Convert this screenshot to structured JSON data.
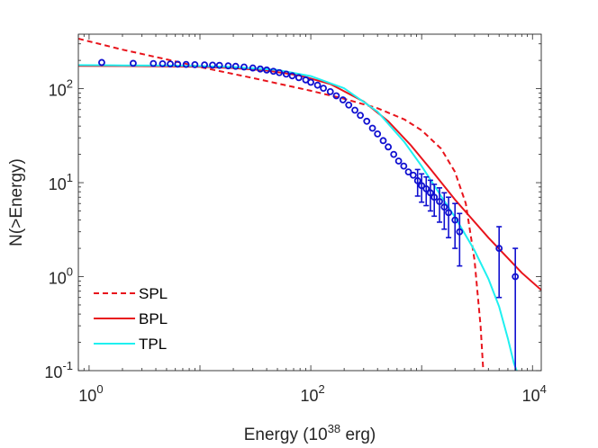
{
  "chart_data": {
    "type": "scatter",
    "xscale": "log",
    "yscale": "log",
    "xlim": [
      0.8,
      12000
    ],
    "ylim": [
      0.1,
      380
    ],
    "xticks": [
      {
        "base": "10",
        "exp": "0",
        "value": 1
      },
      {
        "base": "10",
        "exp": "2",
        "value": 100
      },
      {
        "base": "10",
        "exp": "4",
        "value": 10000
      }
    ],
    "yticks": [
      {
        "base": "10",
        "exp": "-1",
        "value": 0.1
      },
      {
        "base": "10",
        "exp": "0",
        "value": 1
      },
      {
        "base": "10",
        "exp": "1",
        "value": 10
      },
      {
        "base": "10",
        "exp": "2",
        "value": 100
      }
    ],
    "xlabel": {
      "pre": "Energy (10",
      "exp": "38",
      "post": " erg)"
    },
    "ylabel": "N(>Energy)",
    "legend_position": "bottom-left",
    "grid": false,
    "colors": {
      "data": "#1010d0",
      "SPL": "#e8141c",
      "BPL": "#e8141c",
      "TPL": "#1ff0f0",
      "axis": "#262626"
    },
    "series": [
      {
        "name": "SPL",
        "style": "dashed",
        "x": [
          0.8,
          2,
          5,
          10,
          30,
          100,
          200,
          400,
          700,
          1000,
          1500,
          2000,
          2500,
          3000,
          3400,
          3600
        ],
        "y": [
          340,
          260,
          205,
          170,
          130,
          95,
          78,
          62,
          47,
          36,
          23,
          13,
          6,
          1.5,
          0.3,
          0.1
        ]
      },
      {
        "name": "BPL",
        "style": "solid",
        "x": [
          0.8,
          2,
          5,
          10,
          20,
          40,
          80,
          150,
          300,
          500,
          800,
          1200,
          2000,
          4000,
          8000,
          12000
        ],
        "y": [
          175,
          174,
          173,
          171,
          166,
          156,
          138,
          112,
          73,
          45,
          25,
          14,
          6.6,
          2.6,
          1.1,
          0.72
        ]
      },
      {
        "name": "TPL",
        "style": "solid",
        "x": [
          0.8,
          2,
          5,
          10,
          20,
          50,
          100,
          200,
          400,
          700,
          1000,
          1500,
          2000,
          3000,
          4000,
          5000,
          6000,
          6800,
          7200
        ],
        "y": [
          178,
          177,
          176,
          174,
          170,
          158,
          136,
          101,
          57,
          27,
          15,
          7.2,
          4.3,
          1.9,
          0.95,
          0.48,
          0.22,
          0.12,
          0.1
        ]
      }
    ],
    "data_points": {
      "x": [
        1.3,
        2.5,
        3.8,
        4.6,
        5.4,
        6.3,
        7.5,
        9,
        11,
        13,
        15,
        18,
        21,
        25,
        30,
        35,
        40,
        46,
        52,
        60,
        68,
        78,
        90,
        100,
        115,
        130,
        150,
        170,
        195,
        220,
        250,
        280,
        320,
        360,
        400,
        450,
        500,
        560,
        620,
        690,
        760,
        840,
        920,
        1000,
        1100,
        1200,
        1300,
        1450,
        1600,
        1750,
        2000,
        2200,
        5000,
        7000
      ],
      "y": [
        190,
        186,
        185,
        184,
        183,
        182,
        181,
        180,
        179,
        178,
        177,
        175,
        173,
        170,
        166,
        162,
        158,
        153,
        148,
        143,
        137,
        131,
        124,
        117,
        109,
        101,
        93,
        84,
        76,
        67,
        59,
        52,
        45,
        38,
        33,
        28,
        24,
        20,
        17,
        15,
        13,
        12,
        10.5,
        9.3,
        8.6,
        7.8,
        7,
        6.3,
        5.5,
        4.8,
        4,
        3,
        2,
        1
      ],
      "err_low": [
        0,
        0,
        0,
        0,
        0,
        0,
        0,
        0,
        0,
        0,
        0,
        0,
        0,
        0,
        0,
        0,
        0,
        0,
        0,
        0,
        0,
        0,
        0,
        0,
        0,
        0,
        0,
        0,
        0,
        0,
        0,
        0,
        0,
        0,
        0,
        0,
        0,
        0,
        0,
        0,
        0,
        0,
        3.3,
        3.1,
        2.9,
        2.8,
        2.6,
        2.5,
        2.3,
        2.2,
        2,
        1.7,
        1.4,
        1
      ],
      "err_high": [
        0,
        0,
        0,
        0,
        0,
        0,
        0,
        0,
        0,
        0,
        0,
        0,
        0,
        0,
        0,
        0,
        0,
        0,
        0,
        0,
        0,
        0,
        0,
        0,
        0,
        0,
        0,
        0,
        0,
        0,
        0,
        0,
        0,
        0,
        0,
        0,
        0,
        0,
        0,
        0,
        0,
        0,
        3.3,
        3.1,
        2.9,
        2.8,
        2.6,
        2.5,
        2.3,
        2.2,
        2,
        1.7,
        1.4,
        1
      ]
    }
  }
}
